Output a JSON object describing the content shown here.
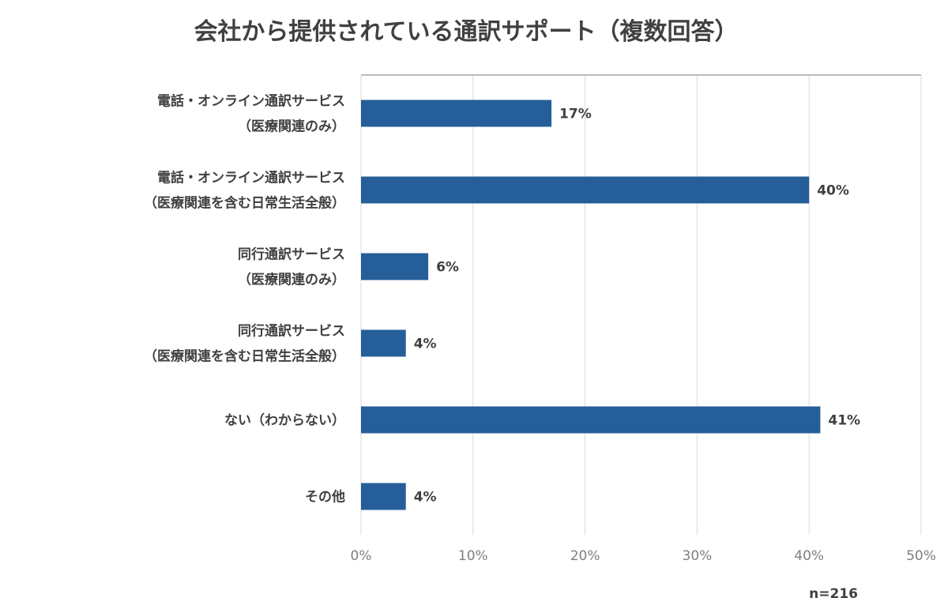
{
  "chart_data": {
    "type": "bar",
    "orientation": "horizontal",
    "title": "会社から提供されている通訳サポート（複数回答）",
    "categories": [
      [
        "電話・オンライン通訳サービス",
        "（医療関連のみ）"
      ],
      [
        "電話・オンライン通訳サービス",
        "（医療関連を含む日常生活全般）"
      ],
      [
        "同行通訳サービス",
        "（医療関連のみ）"
      ],
      [
        "同行通訳サービス",
        "（医療関連を含む日常生活全般）"
      ],
      [
        "ない（わからない）"
      ],
      [
        "その他"
      ]
    ],
    "values": [
      17,
      40,
      6,
      4,
      41,
      4
    ],
    "value_labels": [
      "17%",
      "40%",
      "6%",
      "4%",
      "41%",
      "4%"
    ],
    "xlim": [
      0,
      50
    ],
    "x_ticks": [
      0,
      10,
      20,
      30,
      40,
      50
    ],
    "x_tick_labels": [
      "0%",
      "10%",
      "20%",
      "30%",
      "40%",
      "50%"
    ],
    "xlabel": "",
    "ylabel": "",
    "grid": true,
    "legend": "none",
    "note": "n=216",
    "colors": {
      "bar": "#255e99",
      "grid": "#d9d9d9",
      "axis": "#a6a6a6",
      "text": "#404040",
      "tick": "#7f7f7f"
    }
  }
}
